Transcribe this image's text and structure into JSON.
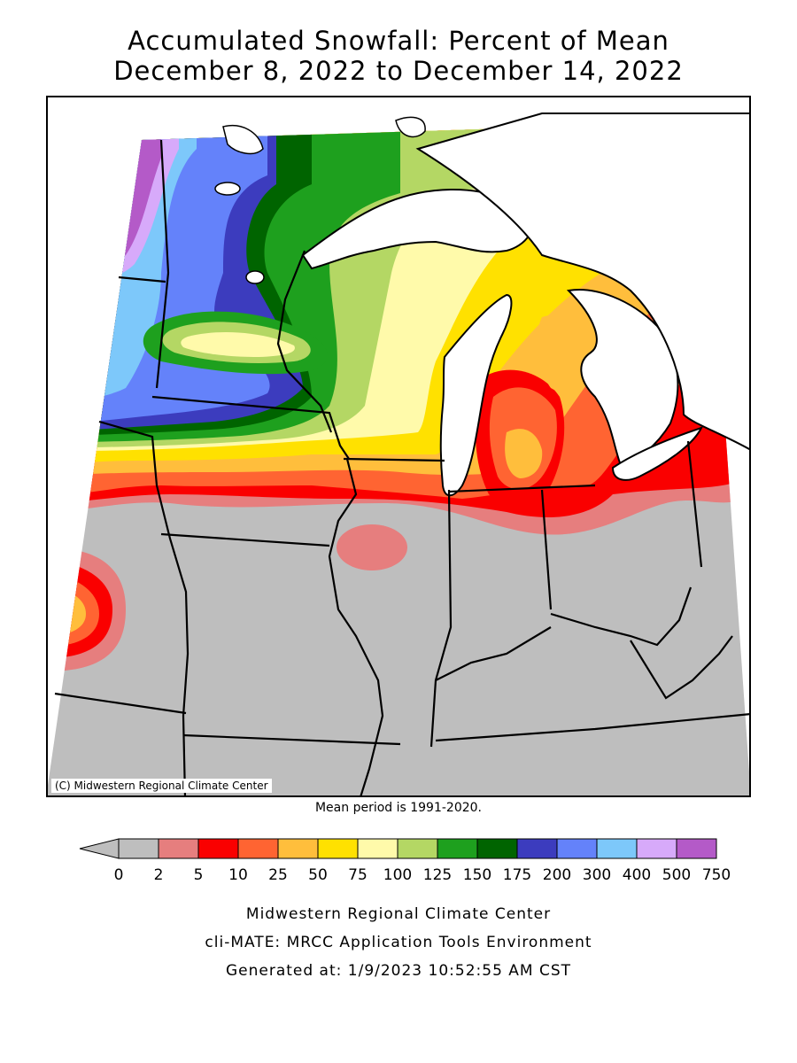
{
  "title": {
    "line1": "Accumulated Snowfall: Percent of Mean",
    "line2": "December 8, 2022 to December 14, 2022"
  },
  "map": {
    "copyright": "(C) Midwestern Regional Climate Center",
    "mean_period": "Mean period is 1991-2020."
  },
  "legend": {
    "tick_labels": [
      "0",
      "2",
      "5",
      "10",
      "25",
      "50",
      "75",
      "100",
      "125",
      "150",
      "175",
      "200",
      "300",
      "400",
      "500",
      "750"
    ],
    "colors": [
      "#bebebe",
      "#e67e7e",
      "#fa0000",
      "#ff6432",
      "#ffbe3c",
      "#ffe100",
      "#fffaaa",
      "#b4d764",
      "#1ea01e",
      "#006400",
      "#3c3cbe",
      "#6482fa",
      "#7dc8fa",
      "#d7aafa",
      "#b45ac8"
    ],
    "below_range_color": "#bebebe"
  },
  "footer": {
    "line1": "Midwestern Regional Climate Center",
    "line2": "cli-MATE: MRCC Application Tools Environment",
    "line3": "Generated at: 1/9/2023 10:52:55 AM CST"
  }
}
